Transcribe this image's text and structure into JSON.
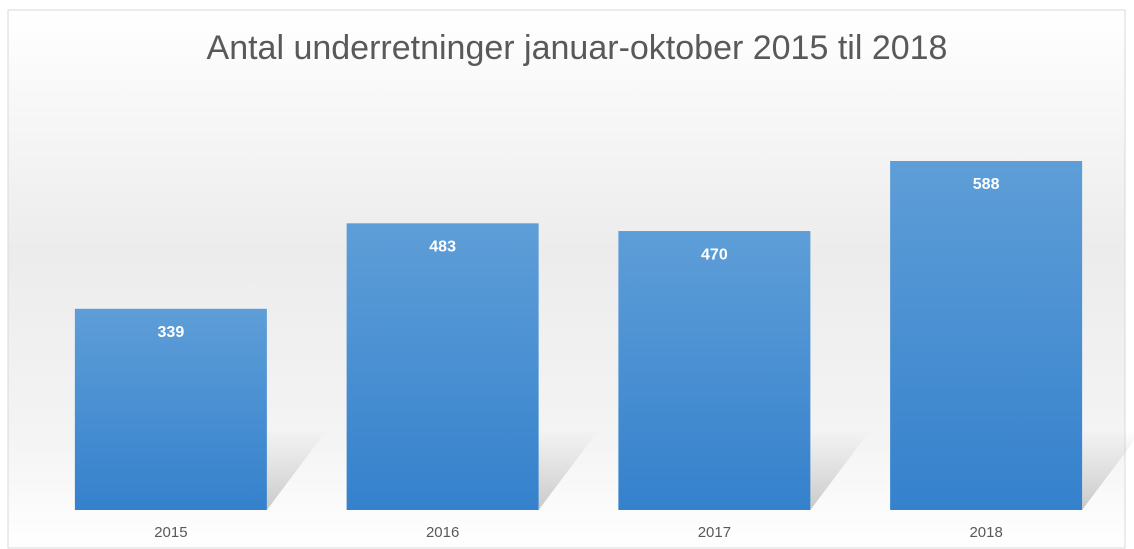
{
  "chart_data": {
    "type": "bar",
    "title": "Antal underretninger januar-oktober 2015 til 2018",
    "categories": [
      "2015",
      "2016",
      "2017",
      "2018"
    ],
    "values": [
      339,
      483,
      470,
      588
    ],
    "color": "#4a8fd3"
  }
}
